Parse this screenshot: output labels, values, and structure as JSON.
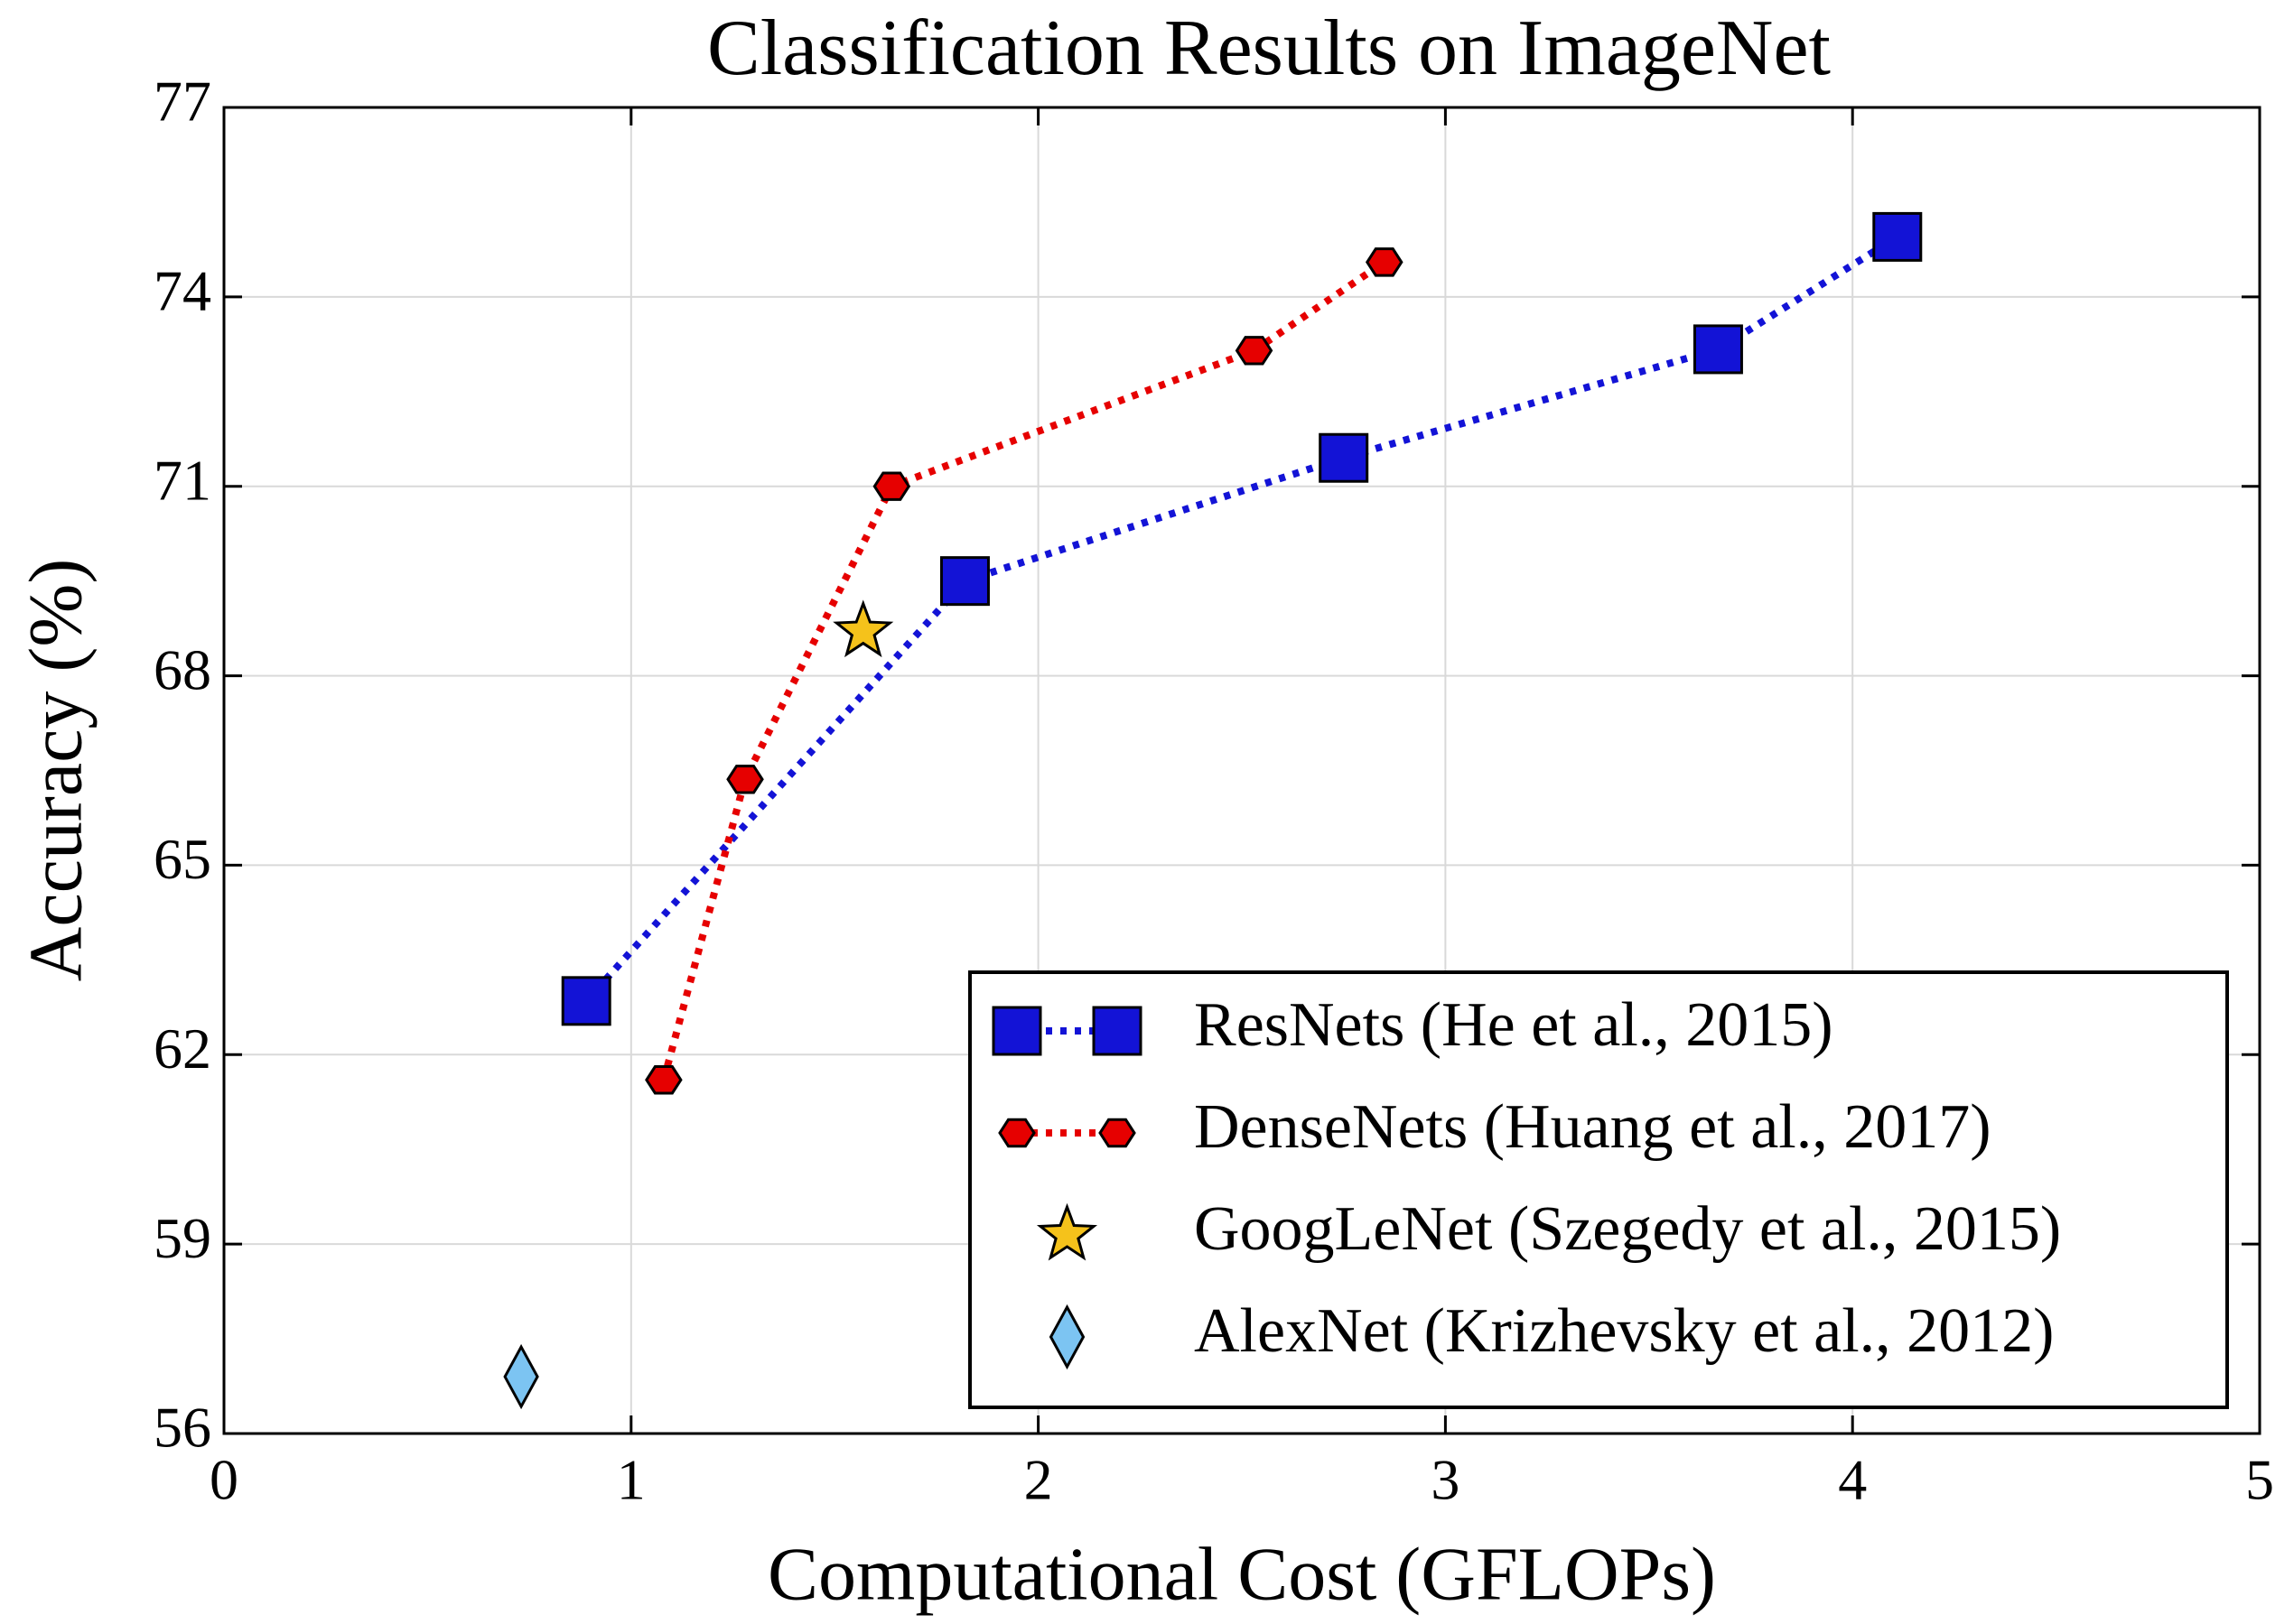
{
  "chart_data": {
    "type": "line",
    "title": "Classification Results on ImageNet",
    "xlabel": "Computational Cost (GFLOPs)",
    "ylabel": "Accuracy (%)",
    "xlim": [
      0,
      5
    ],
    "xticks": [
      0,
      1,
      2,
      3,
      4,
      5
    ],
    "ylim": [
      56,
      77
    ],
    "yticks": [
      56,
      59,
      62,
      65,
      68,
      71,
      74,
      77
    ],
    "grid": true,
    "legend": "lower right",
    "series": [
      {
        "name": "ResNets (He et al., 2015)",
        "color": "#1313d6",
        "marker": "square",
        "linestyle": "dotted",
        "x": [
          0.89,
          1.82,
          2.75,
          3.67,
          4.11
        ],
        "values": [
          62.85,
          69.5,
          71.45,
          73.17,
          74.95
        ]
      },
      {
        "name": "DenseNets (Huang et al., 2017)",
        "color": "#e60000",
        "marker": "hexagon",
        "linestyle": "dotted",
        "x": [
          1.08,
          1.28,
          1.64,
          2.53,
          2.85
        ],
        "values": [
          61.6,
          66.36,
          71.0,
          73.15,
          74.55
        ]
      },
      {
        "name": "GoogLeNet (Szegedy et al., 2015)",
        "color": "#f5c21b",
        "marker": "star",
        "x": [
          1.57
        ],
        "values": [
          68.7
        ]
      },
      {
        "name": "AlexNet (Krizhevsky et al., 2012)",
        "color": "#7cc4f2",
        "marker": "diamond",
        "x": [
          0.73
        ],
        "values": [
          56.9
        ]
      }
    ]
  }
}
